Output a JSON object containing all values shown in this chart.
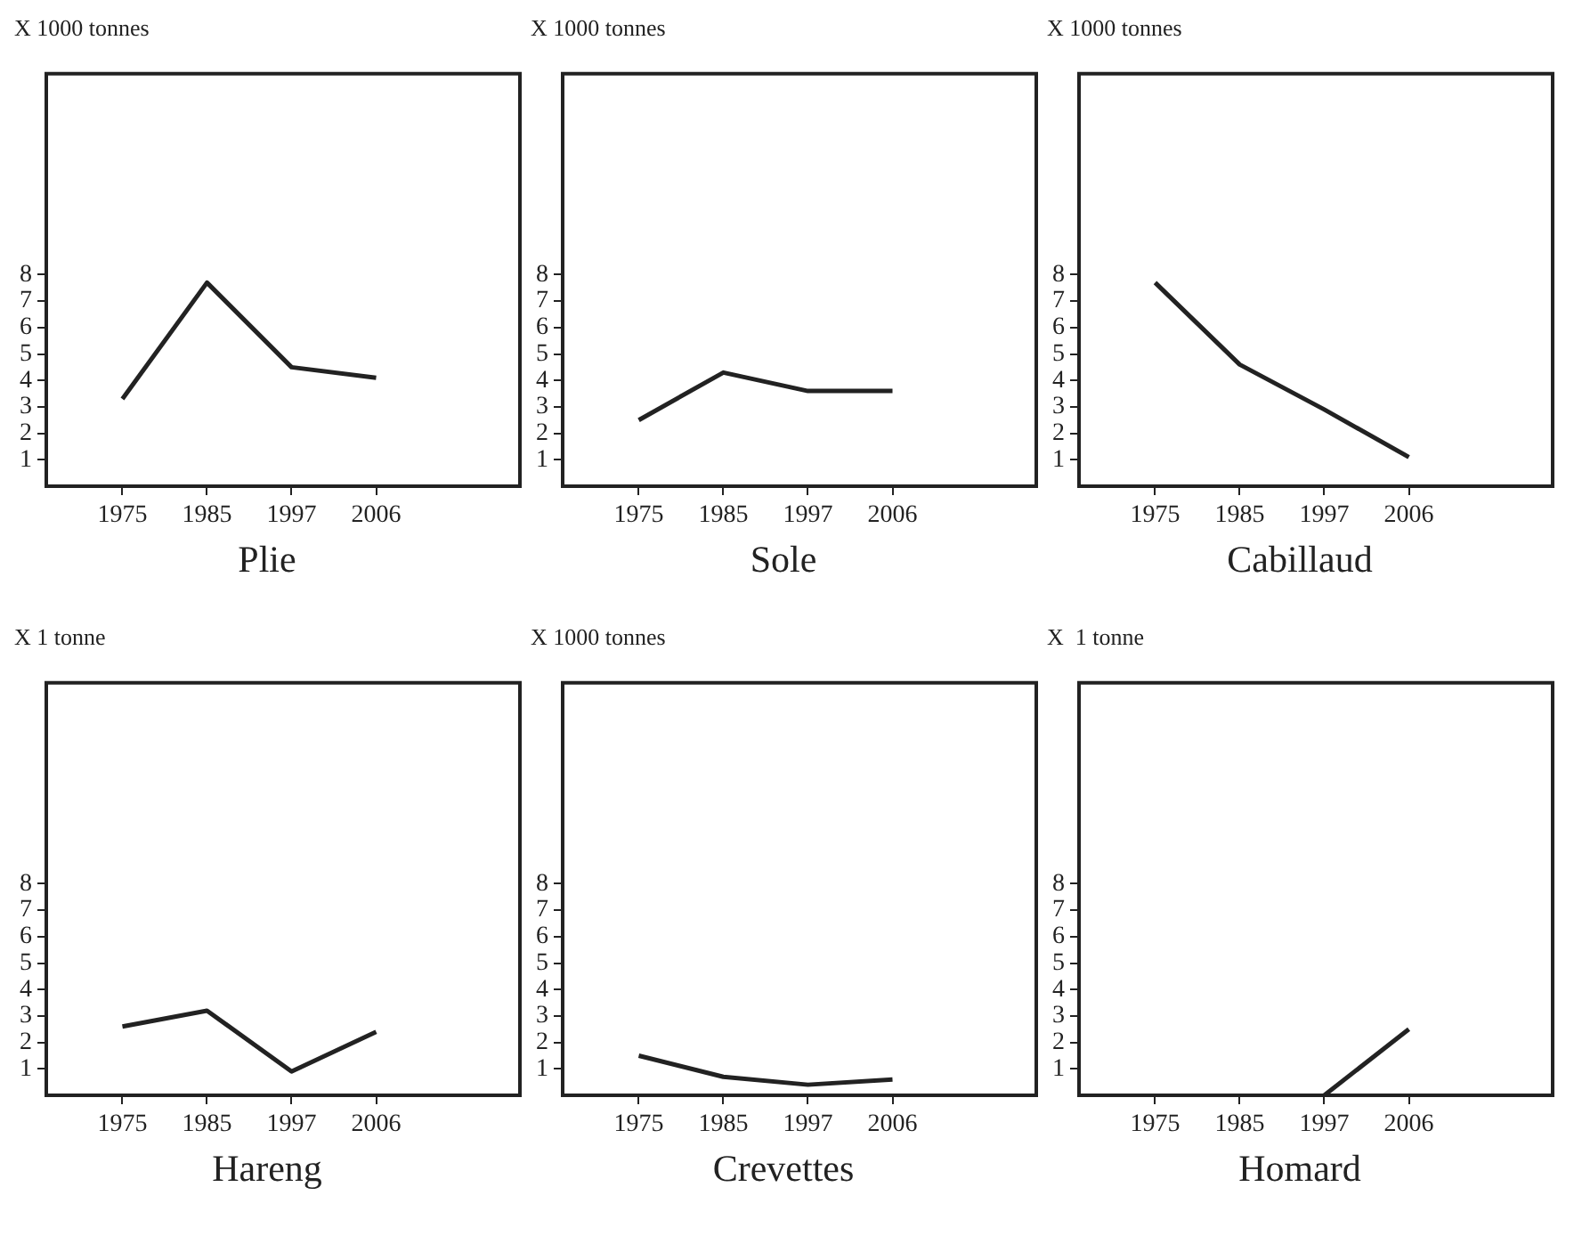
{
  "chart_data": [
    {
      "type": "line",
      "title": "Plie",
      "ylabel": "X 1000 tonnes",
      "categories": [
        "1975",
        "1985",
        "1997",
        "2006"
      ],
      "series": [
        {
          "color": "#222222",
          "values": [
            3.3,
            7.7,
            4.5,
            4.1
          ]
        }
      ],
      "ylim": [
        0,
        15.6
      ],
      "yticks": [
        1,
        2,
        3,
        4,
        5,
        6,
        7,
        8
      ],
      "legend": false,
      "marker": "none"
    },
    {
      "type": "line",
      "title": "Sole",
      "ylabel": "X 1000 tonnes",
      "categories": [
        "1975",
        "1985",
        "1997",
        "2006"
      ],
      "series": [
        {
          "color": "#222222",
          "values": [
            2.5,
            4.3,
            3.6,
            3.6
          ]
        }
      ],
      "ylim": [
        0,
        15.6
      ],
      "yticks": [
        1,
        2,
        3,
        4,
        5,
        6,
        7,
        8
      ],
      "legend": false,
      "marker": "none"
    },
    {
      "type": "line",
      "title": "Cabillaud",
      "ylabel": "X 1000 tonnes",
      "categories": [
        "1975",
        "1985",
        "1997",
        "2006"
      ],
      "series": [
        {
          "color": "#222222",
          "values": [
            7.7,
            4.6,
            2.9,
            1.1
          ]
        }
      ],
      "ylim": [
        0,
        15.6
      ],
      "yticks": [
        1,
        2,
        3,
        4,
        5,
        6,
        7,
        8
      ],
      "legend": false,
      "marker": "none"
    },
    {
      "type": "line",
      "title": "Hareng",
      "ylabel": "X 1 tonne",
      "categories": [
        "1975",
        "1985",
        "1997",
        "2006"
      ],
      "series": [
        {
          "color": "#222222",
          "values": [
            2.6,
            3.2,
            0.9,
            2.4
          ]
        }
      ],
      "ylim": [
        0,
        15.6
      ],
      "yticks": [
        1,
        2,
        3,
        4,
        5,
        6,
        7,
        8
      ],
      "legend": false,
      "marker": "none"
    },
    {
      "type": "line",
      "title": "Crevettes",
      "ylabel": "X 1000 tonnes",
      "categories": [
        "1975",
        "1985",
        "1997",
        "2006"
      ],
      "series": [
        {
          "color": "#222222",
          "values": [
            1.5,
            0.7,
            0.4,
            0.6
          ]
        }
      ],
      "ylim": [
        0,
        15.6
      ],
      "yticks": [
        1,
        2,
        3,
        4,
        5,
        6,
        7,
        8
      ],
      "legend": false,
      "marker": "none"
    },
    {
      "type": "line",
      "title": "Homard",
      "ylabel": "X  1 tonne",
      "categories": [
        "1975",
        "1985",
        "1997",
        "2006"
      ],
      "series": [
        {
          "color": "#222222",
          "values": [
            null,
            null,
            0,
            2.5
          ]
        }
      ],
      "ylim": [
        0,
        15.6
      ],
      "yticks": [
        1,
        2,
        3,
        4,
        5,
        6,
        7,
        8
      ],
      "legend": false,
      "marker": "none"
    }
  ]
}
